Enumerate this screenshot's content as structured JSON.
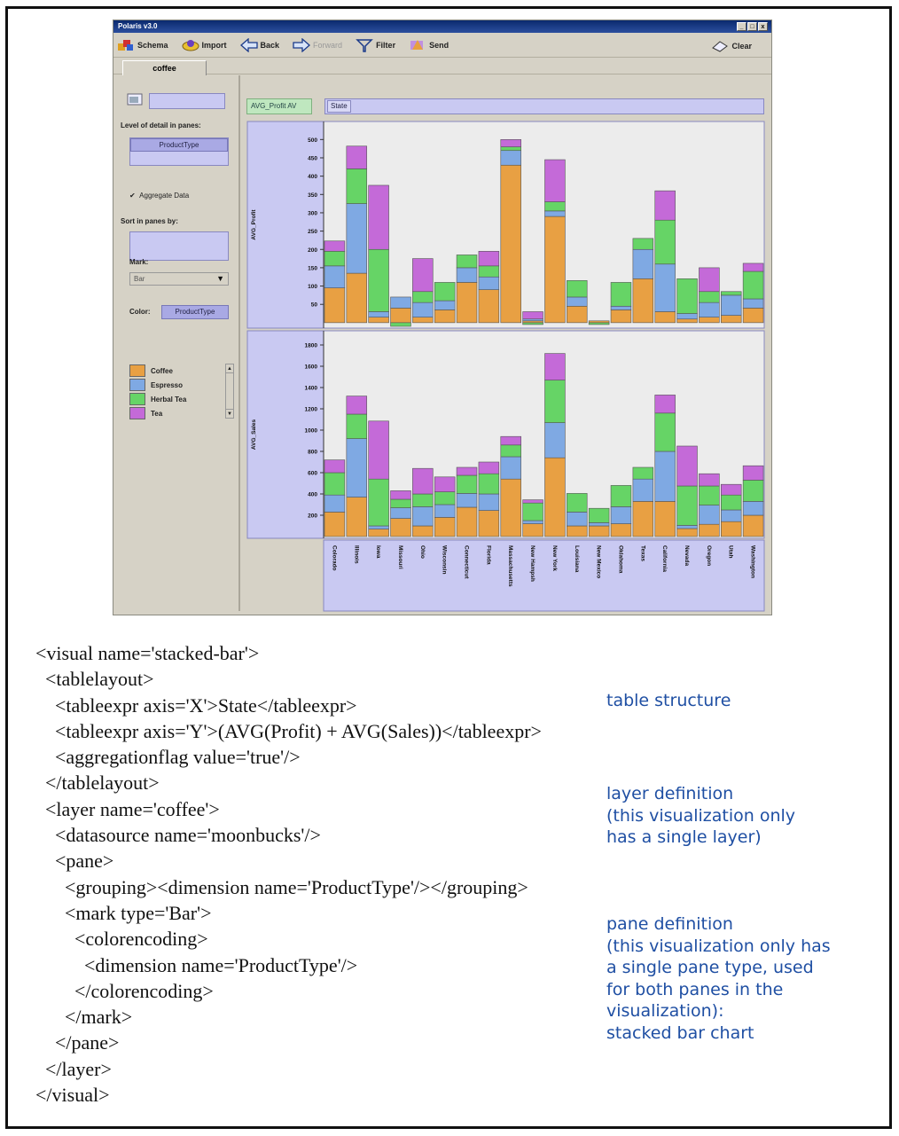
{
  "window": {
    "title": "Polaris v3.0",
    "controls": [
      "_",
      "□",
      "x"
    ],
    "toolbar": {
      "schema": "Schema",
      "import": "Import",
      "back": "Back",
      "forward": "Forward",
      "filter": "Filter",
      "send": "Send",
      "clear": "Clear"
    },
    "tab": "coffee",
    "left_panel": {
      "level_of_detail_label": "Level of detail in panes:",
      "level_of_detail_chip": "ProductType",
      "aggregate_label": "Aggregate Data",
      "aggregate_checked": true,
      "sort_label": "Sort in panes by:",
      "mark_label": "Mark:",
      "mark_value": "Bar",
      "color_label": "Color:",
      "color_chip": "ProductType"
    },
    "shelves": {
      "y_chip": "AVG_Profit  AV",
      "x_chip": "State"
    }
  },
  "chart_data": {
    "type": "bar",
    "stacked": true,
    "categories": [
      "Colorado",
      "Illinois",
      "Iowa",
      "Missouri",
      "Ohio",
      "Wisconsin",
      "Connecticut",
      "Florida",
      "Massachusetts",
      "New Hampshire",
      "New York",
      "Louisiana",
      "New Mexico",
      "Oklahoma",
      "Texas",
      "California",
      "Nevada",
      "Oregon",
      "Utah",
      "Washington"
    ],
    "category_labels": [
      "Colorado",
      "Illinois",
      "Iowa",
      "Missouri",
      "Ohio",
      "Wisconsin",
      "Connecticut",
      "Florida",
      "Massachusetts",
      "New Hampsh",
      "New York",
      "Louisiana",
      "New Mexico",
      "Oklahoma",
      "Texas",
      "California",
      "Nevada",
      "Oregon",
      "Utah",
      "Washington"
    ],
    "series_names": [
      "Coffee",
      "Espresso",
      "Herbal Tea",
      "Tea"
    ],
    "colors": [
      "#e8a043",
      "#7fa9e3",
      "#66d466",
      "#c46ad8"
    ],
    "panes": [
      {
        "ylabel": "AVG_Profit",
        "ylim": [
          -10,
          525
        ],
        "yticks": [
          50,
          100,
          150,
          200,
          250,
          300,
          350,
          400,
          450,
          500
        ],
        "series": [
          {
            "name": "Coffee",
            "values": [
              95,
              135,
              15,
              40,
              15,
              35,
              110,
              90,
              430,
              5,
              290,
              45,
              5,
              35,
              120,
              30,
              10,
              15,
              20,
              40
            ]
          },
          {
            "name": "Espresso",
            "values": [
              60,
              190,
              15,
              30,
              40,
              25,
              40,
              35,
              40,
              5,
              15,
              25,
              0,
              10,
              80,
              130,
              15,
              40,
              55,
              25
            ]
          },
          {
            "name": "Herbal Tea",
            "values": [
              40,
              95,
              170,
              -10,
              30,
              50,
              35,
              30,
              10,
              -5,
              25,
              45,
              -5,
              65,
              30,
              120,
              95,
              30,
              10,
              75
            ]
          },
          {
            "name": "Tea",
            "values": [
              28,
              62,
              175,
              0,
              90,
              0,
              0,
              40,
              20,
              20,
              115,
              0,
              0,
              0,
              0,
              80,
              0,
              65,
              0,
              22
            ]
          }
        ]
      },
      {
        "ylabel": "AVG_Sales",
        "ylim": [
          0,
          1850
        ],
        "yticks": [
          200,
          400,
          600,
          800,
          1000,
          1200,
          1400,
          1600,
          1800
        ],
        "series": [
          {
            "name": "Coffee",
            "values": [
              230,
              370,
              70,
              170,
              100,
              180,
              275,
              245,
              540,
              120,
              740,
              100,
              100,
              120,
              330,
              330,
              75,
              115,
              140,
              200
            ]
          },
          {
            "name": "Espresso",
            "values": [
              160,
              550,
              30,
              100,
              180,
              120,
              130,
              155,
              210,
              30,
              330,
              130,
              30,
              160,
              210,
              470,
              30,
              180,
              110,
              130
            ]
          },
          {
            "name": "Herbal Tea",
            "values": [
              210,
              230,
              440,
              80,
              120,
              120,
              170,
              190,
              110,
              165,
              400,
              175,
              135,
              200,
              110,
              360,
              370,
              180,
              140,
              200
            ]
          },
          {
            "name": "Tea",
            "values": [
              120,
              170,
              545,
              80,
              240,
              140,
              75,
              110,
              80,
              30,
              250,
              0,
              0,
              0,
              0,
              170,
              375,
              115,
              100,
              135
            ]
          }
        ]
      }
    ]
  },
  "code": {
    "lines": [
      "<visual name='stacked-bar'>",
      "  <tablelayout>",
      "    <tableexpr axis='X'>State</tableexpr>",
      "    <tableexpr axis='Y'>(AVG(Profit) + AVG(Sales))</tableexpr>",
      "    <aggregationflag value='true'/>",
      "  </tablelayout>",
      "  <layer name='coffee'>",
      "    <datasource name='moonbucks'/>",
      "    <pane>",
      "      <grouping><dimension name='ProductType'/></grouping>",
      "      <mark type='Bar'>",
      "        <colorencoding>",
      "          <dimension name='ProductType'/>",
      "        </colorencoding>",
      "      </mark>",
      "    </pane>",
      "  </layer>",
      "</visual>"
    ]
  },
  "annotations": {
    "table_structure": "table structure",
    "layer_definition": [
      "layer definition",
      "(this visualization only",
      "has a single layer)"
    ],
    "pane_definition": [
      "pane definition",
      "(this visualization only has",
      "a single pane type, used",
      "for both panes in the",
      "visualization):",
      "stacked bar chart"
    ]
  }
}
